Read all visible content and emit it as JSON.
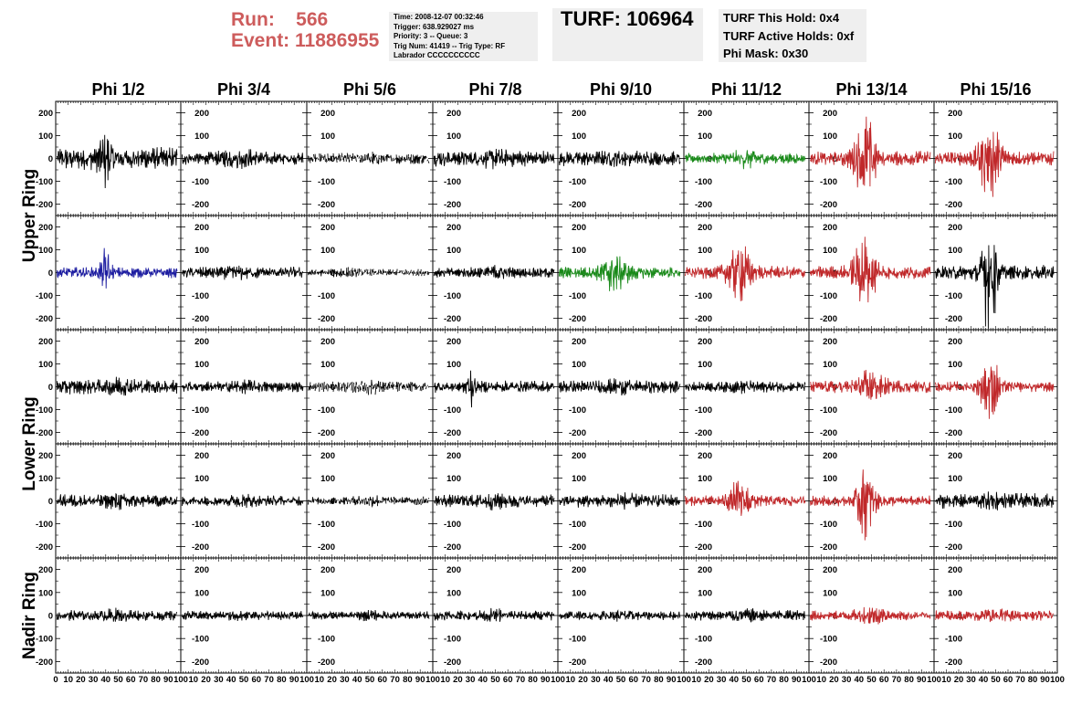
{
  "header": {
    "run_label": "Run:",
    "run_value": "566",
    "event_label": "Event:",
    "event_value": "11886955",
    "trigger_info": [
      "Time: 2008-12-07 00:32:46",
      "Trigger: 638.929027 ms",
      "Priority: 3 -- Queue: 3",
      "Trig Num: 41419 -- Trig Type: RF",
      "Labrador CCCCCCCCCC"
    ],
    "turf": "TURF: 106964",
    "turf_holds": [
      "TURF This Hold: 0x4",
      "TURF Active Holds: 0xf",
      "Phi Mask: 0x30"
    ]
  },
  "chart_data": {
    "type": "line",
    "grid_layout": "5 rows x 8 columns of waveform panels",
    "columns": [
      "Phi 1/2",
      "Phi 3/4",
      "Phi 5/6",
      "Phi 7/8",
      "Phi 9/10",
      "Phi 11/12",
      "Phi 13/14",
      "Phi 15/16"
    ],
    "row_groups": [
      "Upper Ring",
      "Lower Ring",
      "Nadir Ring"
    ],
    "xlim": [
      0,
      100
    ],
    "ylim": [
      -250,
      250
    ],
    "y_ticks": [
      "200",
      "100",
      "0",
      "-100",
      "-200"
    ],
    "x_ticks": [
      "0",
      "10",
      "20",
      "30",
      "40",
      "50",
      "60",
      "70",
      "80",
      "90",
      "100"
    ],
    "colors": {
      "black": "#000000",
      "red": "#c0282a",
      "green": "#1a8a1a",
      "blue": "#1c1ca0",
      "header_red": "#cd5c5c"
    },
    "panels": [
      [
        {
          "color": "black",
          "amp": 38,
          "burst_center": 40,
          "burst_amp": 70,
          "burst_width": 5,
          "style": "solid"
        },
        {
          "color": "black",
          "amp": 22,
          "burst_center": 45,
          "burst_amp": 20,
          "burst_width": 12,
          "style": "solid"
        },
        {
          "color": "black",
          "amp": 18,
          "burst_center": 50,
          "burst_amp": 8,
          "burst_width": 10,
          "style": "dashed"
        },
        {
          "color": "black",
          "amp": 28,
          "burst_center": 50,
          "burst_amp": 10,
          "burst_width": 10,
          "style": "solid"
        },
        {
          "color": "black",
          "amp": 25,
          "burst_center": 50,
          "burst_amp": 10,
          "burst_width": 10,
          "style": "solid"
        },
        {
          "color": "green",
          "amp": 18,
          "burst_center": 50,
          "burst_amp": 20,
          "burst_width": 10,
          "style": "solid"
        },
        {
          "color": "red",
          "amp": 25,
          "burst_center": 45,
          "burst_amp": 150,
          "burst_width": 8,
          "style": "solid"
        },
        {
          "color": "red",
          "amp": 25,
          "burst_center": 45,
          "burst_amp": 140,
          "burst_width": 8,
          "style": "solid"
        }
      ],
      [
        {
          "color": "blue",
          "amp": 18,
          "burst_center": 40,
          "burst_amp": 80,
          "burst_width": 4,
          "style": "solid"
        },
        {
          "color": "black",
          "amp": 20,
          "burst_center": 45,
          "burst_amp": 10,
          "burst_width": 10,
          "style": "solid"
        },
        {
          "color": "black",
          "amp": 12,
          "burst_center": 30,
          "burst_amp": 8,
          "burst_width": 10,
          "style": "dashed"
        },
        {
          "color": "black",
          "amp": 18,
          "burst_center": 50,
          "burst_amp": 10,
          "burst_width": 10,
          "style": "solid"
        },
        {
          "color": "green",
          "amp": 20,
          "burst_center": 45,
          "burst_amp": 50,
          "burst_width": 10,
          "style": "solid"
        },
        {
          "color": "red",
          "amp": 22,
          "burst_center": 45,
          "burst_amp": 90,
          "burst_width": 9,
          "style": "solid"
        },
        {
          "color": "red",
          "amp": 22,
          "burst_center": 45,
          "burst_amp": 110,
          "burst_width": 9,
          "style": "solid"
        },
        {
          "color": "black",
          "amp": 25,
          "burst_center": 45,
          "burst_amp": 200,
          "burst_width": 6,
          "style": "solid"
        }
      ],
      [
        {
          "color": "black",
          "amp": 25,
          "burst_center": 50,
          "burst_amp": 10,
          "burst_width": 10,
          "style": "solid"
        },
        {
          "color": "black",
          "amp": 18,
          "burst_center": 50,
          "burst_amp": 8,
          "burst_width": 10,
          "style": "solid"
        },
        {
          "color": "black",
          "amp": 18,
          "burst_center": 50,
          "burst_amp": 10,
          "burst_width": 10,
          "style": "dashed"
        },
        {
          "color": "black",
          "amp": 20,
          "burst_center": 30,
          "burst_amp": 60,
          "burst_width": 3,
          "style": "solid"
        },
        {
          "color": "black",
          "amp": 22,
          "burst_center": 50,
          "burst_amp": 10,
          "burst_width": 10,
          "style": "solid"
        },
        {
          "color": "black",
          "amp": 18,
          "burst_center": 50,
          "burst_amp": 8,
          "burst_width": 10,
          "style": "solid"
        },
        {
          "color": "red",
          "amp": 22,
          "burst_center": 50,
          "burst_amp": 45,
          "burst_width": 10,
          "style": "solid"
        },
        {
          "color": "red",
          "amp": 18,
          "burst_center": 45,
          "burst_amp": 120,
          "burst_width": 7,
          "style": "solid"
        }
      ],
      [
        {
          "color": "black",
          "amp": 22,
          "burst_center": 50,
          "burst_amp": 10,
          "burst_width": 10,
          "style": "solid"
        },
        {
          "color": "black",
          "amp": 18,
          "burst_center": 50,
          "burst_amp": 8,
          "burst_width": 10,
          "style": "solid"
        },
        {
          "color": "black",
          "amp": 14,
          "burst_center": 50,
          "burst_amp": 10,
          "burst_width": 10,
          "style": "dashed"
        },
        {
          "color": "black",
          "amp": 22,
          "burst_center": 50,
          "burst_amp": 10,
          "burst_width": 10,
          "style": "solid"
        },
        {
          "color": "black",
          "amp": 22,
          "burst_center": 50,
          "burst_amp": 10,
          "burst_width": 10,
          "style": "solid"
        },
        {
          "color": "red",
          "amp": 18,
          "burst_center": 45,
          "burst_amp": 60,
          "burst_width": 9,
          "style": "solid"
        },
        {
          "color": "red",
          "amp": 18,
          "burst_center": 45,
          "burst_amp": 110,
          "burst_width": 7,
          "style": "solid"
        },
        {
          "color": "black",
          "amp": 25,
          "burst_center": 50,
          "burst_amp": 10,
          "burst_width": 10,
          "style": "solid"
        }
      ],
      [
        {
          "color": "black",
          "amp": 18,
          "burst_center": 50,
          "burst_amp": 8,
          "burst_width": 10,
          "style": "solid"
        },
        {
          "color": "black",
          "amp": 15,
          "burst_center": 50,
          "burst_amp": 6,
          "burst_width": 10,
          "style": "solid"
        },
        {
          "color": "black",
          "amp": 14,
          "burst_center": 50,
          "burst_amp": 6,
          "burst_width": 10,
          "style": "solid"
        },
        {
          "color": "black",
          "amp": 17,
          "burst_center": 50,
          "burst_amp": 8,
          "burst_width": 10,
          "style": "solid"
        },
        {
          "color": "black",
          "amp": 15,
          "burst_center": 50,
          "burst_amp": 6,
          "burst_width": 10,
          "style": "solid"
        },
        {
          "color": "black",
          "amp": 18,
          "burst_center": 50,
          "burst_amp": 8,
          "burst_width": 10,
          "style": "solid"
        },
        {
          "color": "red",
          "amp": 17,
          "burst_center": 50,
          "burst_amp": 20,
          "burst_width": 10,
          "style": "solid"
        },
        {
          "color": "red",
          "amp": 17,
          "burst_center": 50,
          "burst_amp": 15,
          "burst_width": 10,
          "style": "solid"
        }
      ]
    ]
  }
}
